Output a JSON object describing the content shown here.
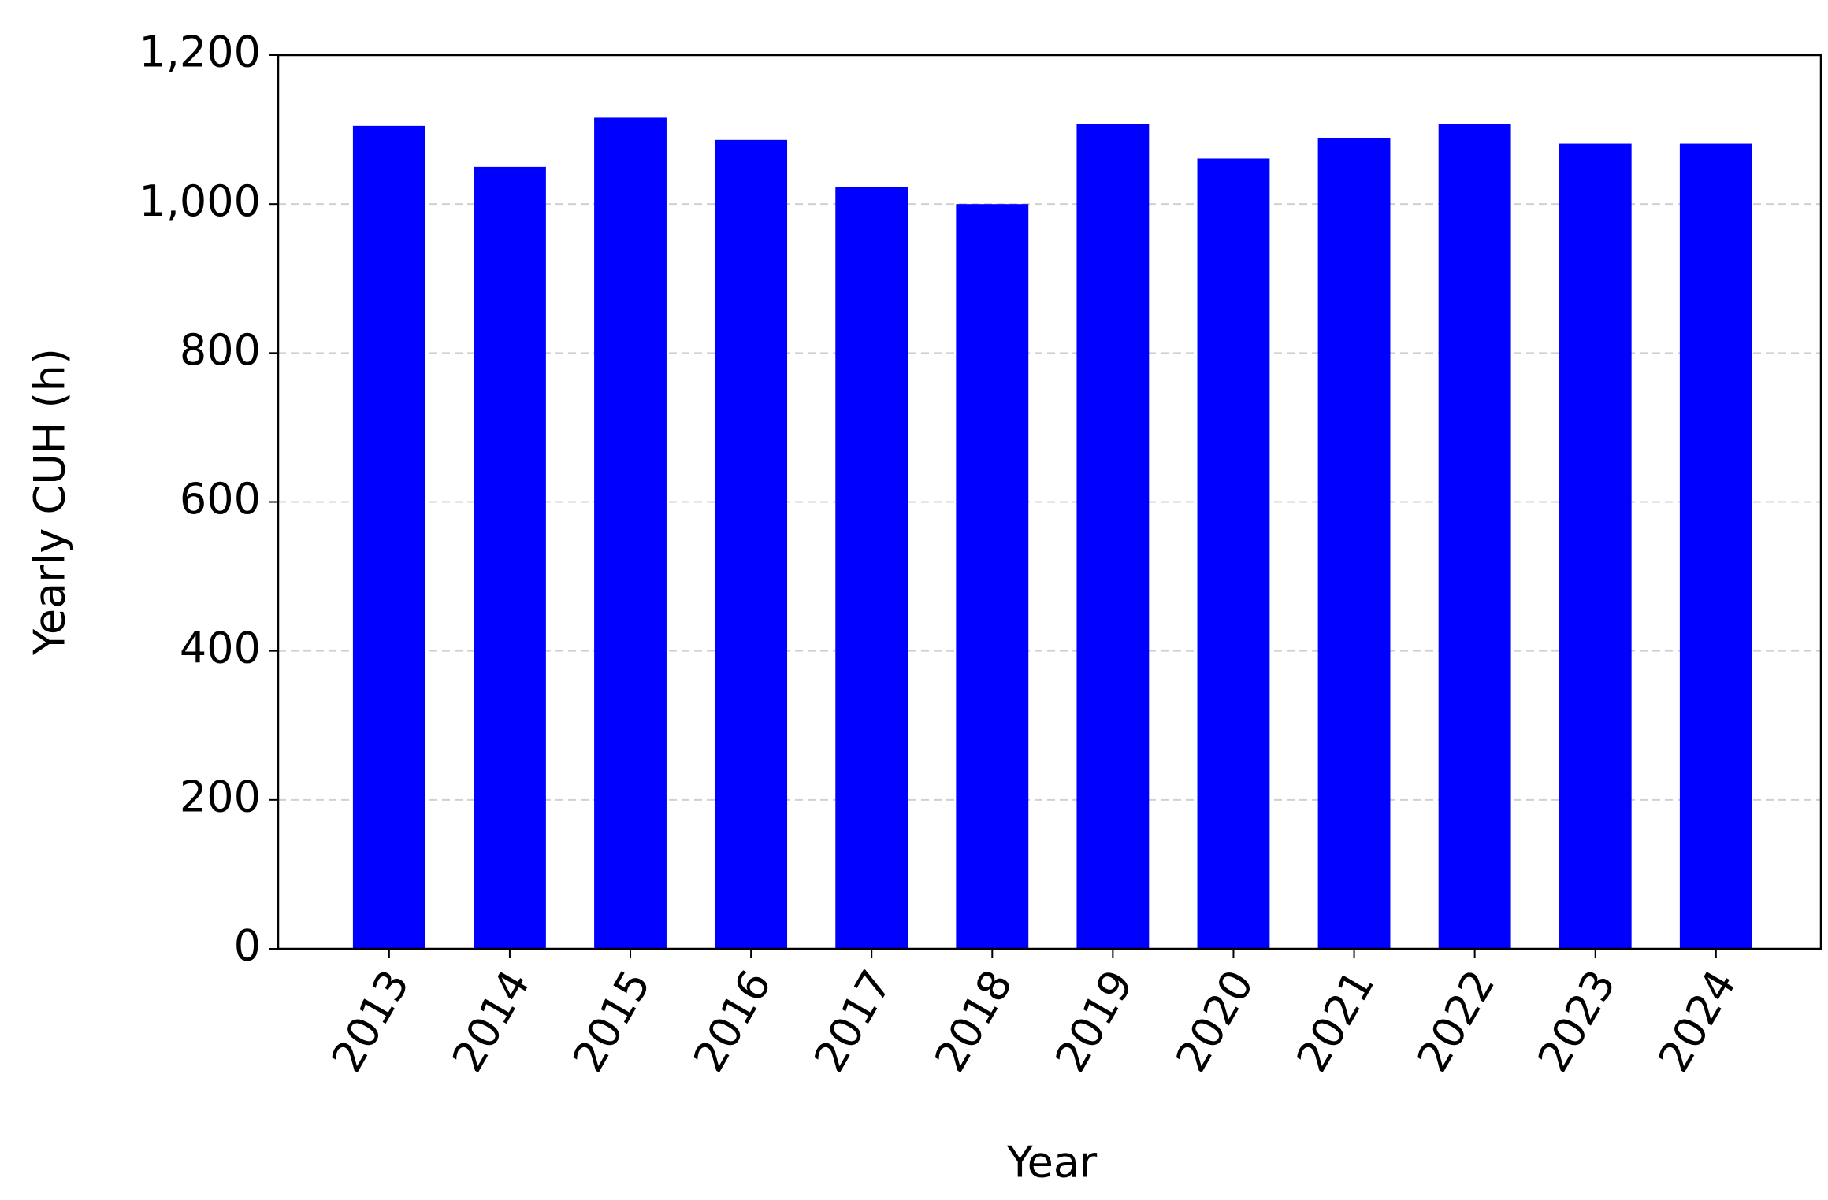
{
  "chart_data": {
    "type": "bar",
    "x_label": "Year",
    "y_label": "Yearly CUH (h)",
    "categories": [
      "2013",
      "2014",
      "2015",
      "2016",
      "2017",
      "2018",
      "2019",
      "2020",
      "2021",
      "2022",
      "2023",
      "2024"
    ],
    "values": [
      1105,
      1050,
      1116,
      1086,
      1023,
      1000,
      1108,
      1061,
      1089,
      1108,
      1081,
      1081
    ],
    "color": "#0000ff",
    "ylim": [
      0,
      1200
    ],
    "yticks": [
      0,
      200,
      400,
      600,
      800,
      {
        "value": 1000,
        "label": "1,000"
      },
      {
        "value": 1200,
        "label": "1,200"
      }
    ],
    "grid": true
  }
}
